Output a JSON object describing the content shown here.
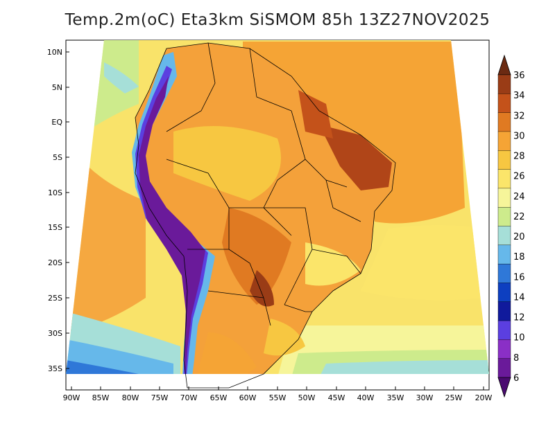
{
  "title": "Temp.2m(oC) Eta3km SiSMOM 85h 13Z27NOV2025",
  "lat_ticks": [
    "10N",
    "5N",
    "EQ",
    "5S",
    "10S",
    "15S",
    "20S",
    "25S",
    "30S",
    "35S"
  ],
  "lon_ticks": [
    "90W",
    "85W",
    "80W",
    "75W",
    "70W",
    "65W",
    "60W",
    "55W",
    "50W",
    "45W",
    "40W",
    "35W",
    "30W",
    "25W",
    "20W"
  ],
  "colorbar": {
    "labels": [
      "36",
      "34",
      "32",
      "30",
      "28",
      "26",
      "24",
      "22",
      "20",
      "18",
      "16",
      "14",
      "12",
      "10",
      "8",
      "6"
    ],
    "colors": [
      "#6b2a12",
      "#9a3c16",
      "#c4521a",
      "#e07a22",
      "#f5a435",
      "#f7c741",
      "#fbe56a",
      "#f6f59a",
      "#cdeb8c",
      "#a6dfd8",
      "#66b8ea",
      "#2f78d8",
      "#0d3fc0",
      "#101a9c",
      "#5b3fe0",
      "#8a2fc6",
      "#6a1a9a",
      "#4a0a70"
    ]
  }
}
